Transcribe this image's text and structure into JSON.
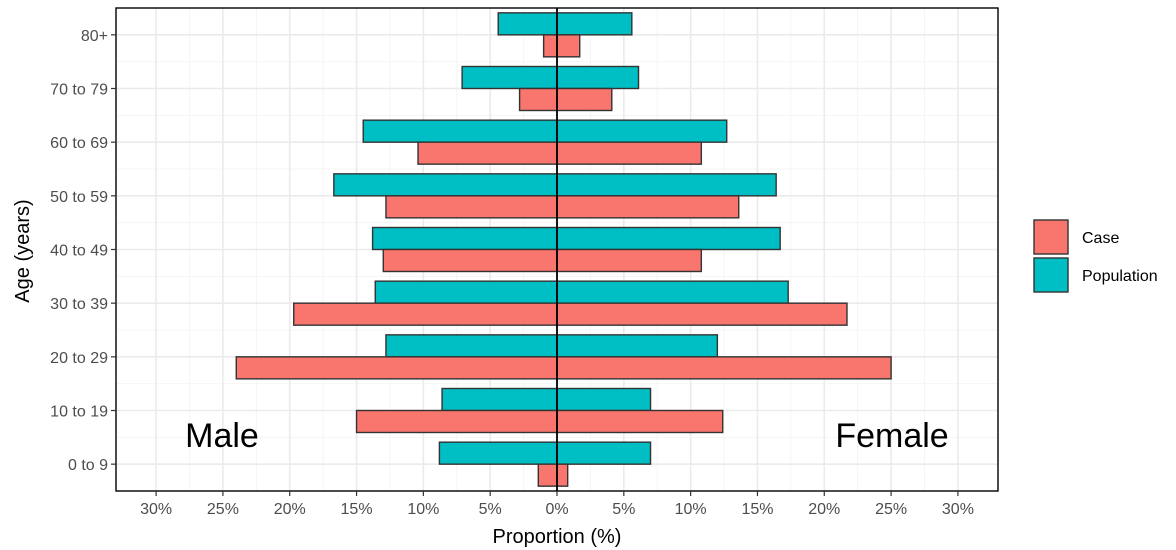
{
  "chart_data": {
    "type": "bar",
    "orientation": "horizontal",
    "layout": "population-pyramid",
    "title": "",
    "xlabel": "Proportion (%)",
    "ylabel": "Age (years)",
    "xlim": [
      -33,
      33
    ],
    "x_ticks": [
      -30,
      -25,
      -20,
      -15,
      -10,
      -5,
      0,
      5,
      10,
      15,
      20,
      25,
      30
    ],
    "x_tick_labels": [
      "30%",
      "25%",
      "20%",
      "15%",
      "10%",
      "5%",
      "0%",
      "5%",
      "10%",
      "15%",
      "20%",
      "25%",
      "30%"
    ],
    "categories": [
      "0 to 9",
      "10 to 19",
      "20 to 29",
      "30 to 39",
      "40 to 49",
      "50 to 59",
      "60 to 69",
      "70 to 79",
      "80+"
    ],
    "grid": true,
    "legend_position": "right",
    "side_labels": {
      "male": "Male",
      "female": "Female"
    },
    "series": [
      {
        "name": "Case",
        "color": "#F8766D",
        "male": [
          1.4,
          15.0,
          24.0,
          19.7,
          13.0,
          12.8,
          10.4,
          2.8,
          1.0
        ],
        "female": [
          0.8,
          12.4,
          25.0,
          21.7,
          10.8,
          13.6,
          10.8,
          4.1,
          1.7
        ]
      },
      {
        "name": "Population",
        "color": "#00BFC4",
        "male": [
          8.8,
          8.6,
          12.8,
          13.6,
          13.8,
          16.7,
          14.5,
          7.1,
          4.4
        ],
        "female": [
          7.0,
          7.0,
          12.0,
          17.3,
          16.7,
          16.4,
          12.7,
          6.1,
          5.6
        ]
      }
    ]
  }
}
